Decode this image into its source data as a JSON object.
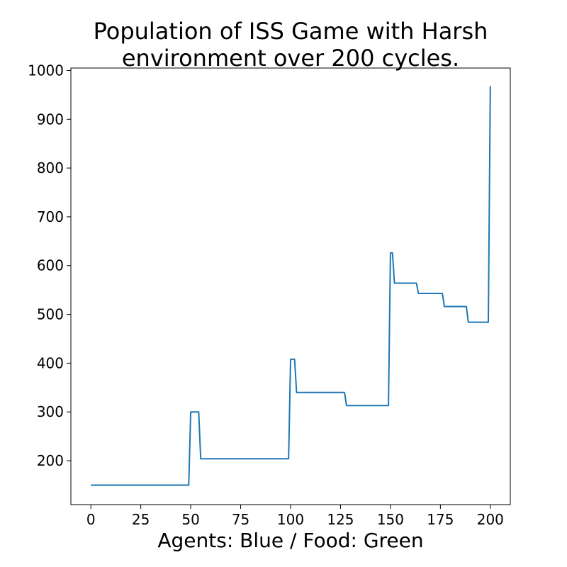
{
  "chart_data": {
    "type": "line",
    "title": [
      "Population of ISS Game with Harsh",
      "environment over 200 cycles."
    ],
    "xlabel": "Agents: Blue / Food: Green",
    "ylabel": "",
    "xlim": [
      -10,
      210
    ],
    "ylim": [
      110,
      1005
    ],
    "x_ticks": [
      0,
      25,
      50,
      75,
      100,
      125,
      150,
      175,
      200
    ],
    "y_ticks": [
      200,
      300,
      400,
      500,
      600,
      700,
      800,
      900,
      1000
    ],
    "grid": false,
    "series": [
      {
        "color": "#1f77b4",
        "points": [
          [
            0,
            150
          ],
          [
            49,
            150
          ],
          [
            50,
            300
          ],
          [
            54,
            300
          ],
          [
            55,
            204
          ],
          [
            99,
            204
          ],
          [
            100,
            408
          ],
          [
            102,
            408
          ],
          [
            103,
            340
          ],
          [
            127,
            340
          ],
          [
            128,
            313
          ],
          [
            149,
            313
          ],
          [
            150,
            626
          ],
          [
            151,
            626
          ],
          [
            152,
            564
          ],
          [
            163,
            564
          ],
          [
            164,
            543
          ],
          [
            176,
            543
          ],
          [
            177,
            516
          ],
          [
            188,
            516
          ],
          [
            189,
            484
          ],
          [
            199,
            484
          ],
          [
            200,
            968
          ]
        ]
      }
    ]
  }
}
